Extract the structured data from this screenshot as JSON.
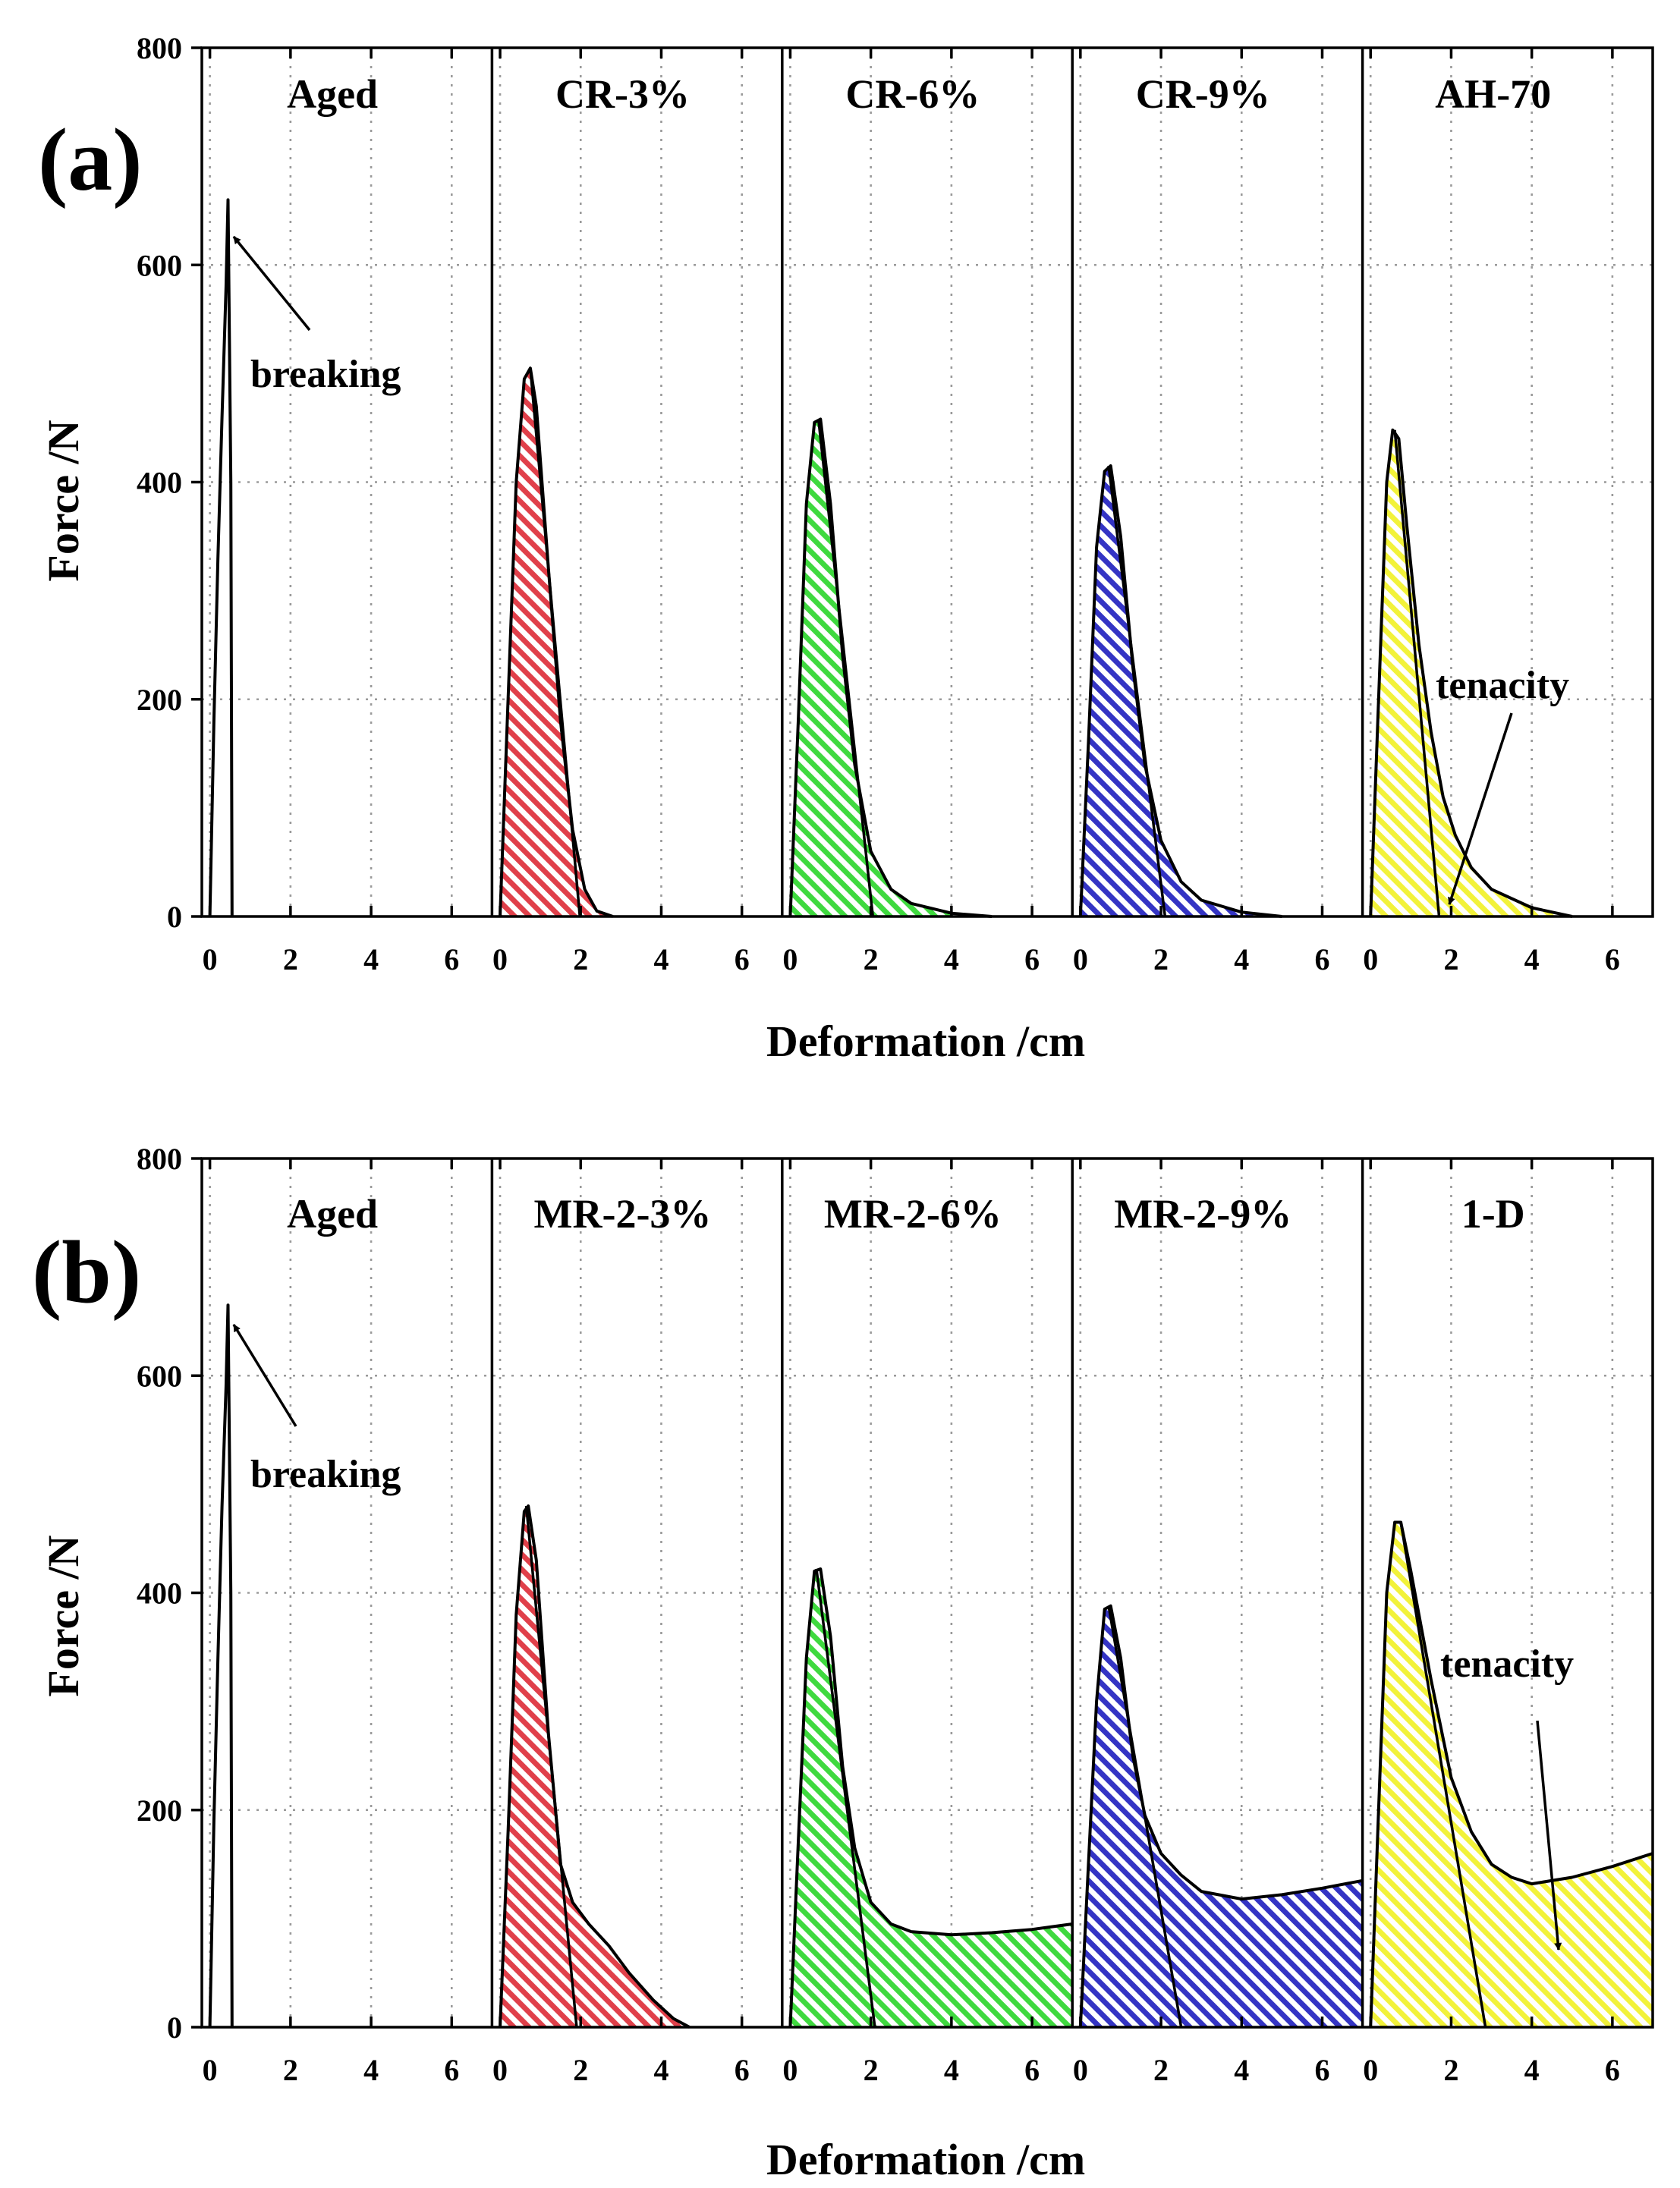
{
  "colors": {
    "red": "#e0404a",
    "green": "#3fd93f",
    "blue": "#3434c4",
    "yellow": "#f2f23a",
    "aged": "#000000"
  },
  "chart_data": [
    {
      "panel_label": "(a)",
      "type": "area",
      "xlabel": "Deformation /cm",
      "ylabel": "Force /N",
      "ylim": [
        0,
        800
      ],
      "yticks": [
        "0",
        "200",
        "400",
        "600",
        "800"
      ],
      "xlim_per_subplot": [
        -0.2,
        7
      ],
      "xticks": [
        "0",
        "2",
        "4",
        "6"
      ],
      "grid": true,
      "annotations": [
        {
          "text": "breaking",
          "subplot": "Aged",
          "points_to": [
            0.5,
            620
          ]
        },
        {
          "text": "tenacity",
          "subplot": "AH-70",
          "points_to": [
            2.1,
            20
          ]
        }
      ],
      "series": [
        {
          "name": "Aged",
          "color": "aged",
          "x": [
            0.0,
            0.1,
            0.2,
            0.3,
            0.4,
            0.45,
            0.52,
            0.55
          ],
          "y": [
            0,
            180,
            330,
            460,
            580,
            660,
            400,
            0
          ]
        },
        {
          "name": "CR-3%",
          "color": "red",
          "x": [
            0,
            0.2,
            0.4,
            0.6,
            0.75,
            0.9,
            1.2,
            1.5,
            1.8,
            2.1,
            2.4,
            2.8
          ],
          "y": [
            0,
            200,
            400,
            495,
            505,
            470,
            320,
            180,
            80,
            25,
            5,
            0
          ],
          "tangent": [
            [
              0.75,
              505
            ],
            [
              1.98,
              0
            ]
          ]
        },
        {
          "name": "CR-6%",
          "color": "green",
          "x": [
            0,
            0.2,
            0.4,
            0.6,
            0.75,
            1.0,
            1.3,
            1.6,
            2.0,
            2.5,
            3.0,
            4.0,
            5.0
          ],
          "y": [
            0,
            180,
            380,
            455,
            458,
            380,
            240,
            140,
            60,
            25,
            12,
            3,
            0
          ],
          "tangent": [
            [
              0.7,
              458
            ],
            [
              2.05,
              0
            ]
          ]
        },
        {
          "name": "CR-9%",
          "color": "blue",
          "x": [
            0,
            0.2,
            0.4,
            0.6,
            0.75,
            1.0,
            1.3,
            1.6,
            2.0,
            2.5,
            3.0,
            4.0,
            5.0
          ],
          "y": [
            0,
            160,
            340,
            410,
            415,
            350,
            230,
            140,
            70,
            32,
            15,
            4,
            0
          ],
          "tangent": [
            [
              0.7,
              415
            ],
            [
              2.1,
              0
            ]
          ]
        },
        {
          "name": "AH-70",
          "color": "yellow",
          "x": [
            0,
            0.2,
            0.4,
            0.55,
            0.7,
            0.9,
            1.2,
            1.5,
            1.8,
            2.1,
            2.5,
            3.0,
            4.0,
            5.0
          ],
          "y": [
            0,
            200,
            400,
            448,
            440,
            360,
            250,
            170,
            110,
            75,
            45,
            25,
            8,
            0
          ],
          "tangent": [
            [
              0.6,
              448
            ],
            [
              1.7,
              0
            ]
          ]
        }
      ]
    },
    {
      "panel_label": "(b)",
      "type": "area",
      "xlabel": "Deformation /cm",
      "ylabel": "Force /N",
      "ylim": [
        0,
        800
      ],
      "yticks": [
        "0",
        "200",
        "400",
        "600",
        "800"
      ],
      "xlim_per_subplot": [
        -0.2,
        7
      ],
      "xticks": [
        "0",
        "2",
        "4",
        "6"
      ],
      "grid": true,
      "annotations": [
        {
          "text": "breaking",
          "subplot": "Aged",
          "points_to": [
            0.5,
            625
          ]
        },
        {
          "text": "tenacity",
          "subplot": "1-D",
          "points_to": [
            4.7,
            70
          ]
        }
      ],
      "series": [
        {
          "name": "Aged",
          "color": "aged",
          "x": [
            0.0,
            0.1,
            0.2,
            0.3,
            0.4,
            0.45,
            0.52,
            0.55
          ],
          "y": [
            0,
            190,
            340,
            480,
            590,
            665,
            400,
            0
          ]
        },
        {
          "name": "MR-2-3%",
          "color": "red",
          "x": [
            0,
            0.2,
            0.4,
            0.6,
            0.7,
            0.9,
            1.2,
            1.5,
            1.8,
            2.2,
            2.7,
            3.2,
            3.8,
            4.3,
            4.7
          ],
          "y": [
            0,
            180,
            380,
            475,
            480,
            430,
            270,
            150,
            115,
            95,
            75,
            50,
            25,
            8,
            0
          ],
          "tangent": [
            [
              0.65,
              480
            ],
            [
              1.9,
              0
            ]
          ]
        },
        {
          "name": "MR-2-6%",
          "color": "green",
          "x": [
            0,
            0.2,
            0.4,
            0.6,
            0.75,
            1.0,
            1.3,
            1.6,
            2.0,
            2.5,
            3.0,
            4.0,
            5.0,
            6.0,
            7.0
          ],
          "y": [
            0,
            170,
            340,
            420,
            422,
            360,
            240,
            165,
            115,
            95,
            88,
            85,
            87,
            90,
            95
          ],
          "tangent": [
            [
              0.65,
              422
            ],
            [
              2.1,
              0
            ]
          ]
        },
        {
          "name": "MR-2-9%",
          "color": "blue",
          "x": [
            0,
            0.2,
            0.4,
            0.6,
            0.75,
            1.0,
            1.3,
            1.6,
            2.0,
            2.5,
            3.0,
            4.0,
            5.0,
            6.0,
            7.0
          ],
          "y": [
            0,
            150,
            300,
            385,
            388,
            340,
            250,
            195,
            160,
            140,
            125,
            118,
            122,
            128,
            135
          ],
          "tangent": [
            [
              0.7,
              388
            ],
            [
              2.5,
              0
            ]
          ]
        },
        {
          "name": "1-D",
          "color": "yellow",
          "x": [
            0,
            0.2,
            0.4,
            0.6,
            0.75,
            1.0,
            1.5,
            2.0,
            2.5,
            3.0,
            3.5,
            4.0,
            5.0,
            6.0,
            7.0
          ],
          "y": [
            0,
            200,
            400,
            465,
            465,
            420,
            320,
            230,
            180,
            150,
            138,
            132,
            138,
            148,
            160
          ],
          "tangent": [
            [
              0.75,
              465
            ],
            [
              2.85,
              0
            ]
          ]
        }
      ]
    }
  ]
}
